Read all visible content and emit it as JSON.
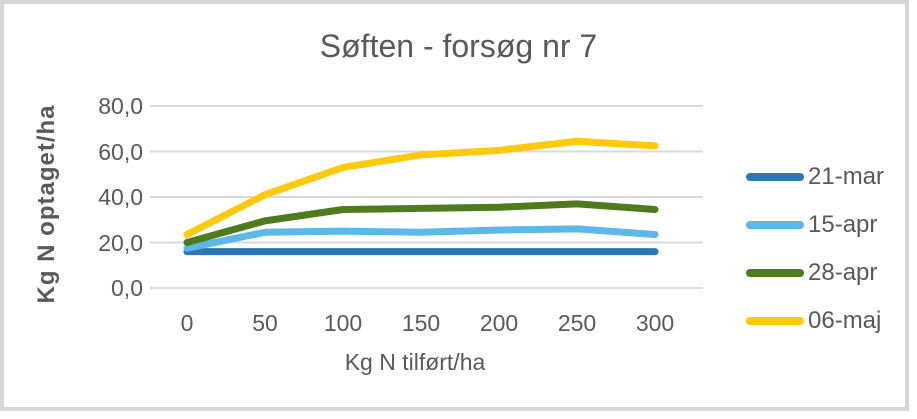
{
  "frame": {
    "border_color": "#d6d6d9",
    "background": "#ffffff"
  },
  "chart_data": {
    "type": "line",
    "title": "Søften - forsøg nr 7",
    "xlabel": "Kg N tilført/ha",
    "ylabel": "Kg N optaget/ha",
    "x": [
      0,
      50,
      100,
      150,
      200,
      250,
      300
    ],
    "x_tick_labels": [
      "0",
      "50",
      "100",
      "150",
      "200",
      "250",
      "300"
    ],
    "y_ticks": [
      0,
      20,
      40,
      60,
      80
    ],
    "y_tick_labels": [
      "0,0",
      "20,0",
      "40,0",
      "60,0",
      "80,0"
    ],
    "ylim": [
      0,
      80
    ],
    "grid": "horizontal",
    "legend_position": "right",
    "series": [
      {
        "name": "21-mar",
        "color": "#2e75b6",
        "values": [
          16,
          16,
          16,
          16,
          16,
          16,
          16
        ]
      },
      {
        "name": "15-apr",
        "color": "#5bb8e8",
        "values": [
          17.5,
          24.5,
          25,
          24.5,
          25.5,
          26,
          23.5
        ]
      },
      {
        "name": "28-apr",
        "color": "#4e7b1e",
        "values": [
          20,
          29.5,
          34.5,
          35,
          35.5,
          37,
          34.5
        ]
      },
      {
        "name": "06-maj",
        "color": "#ffc90e",
        "values": [
          23.5,
          41,
          53,
          58.5,
          60.5,
          64.5,
          62.5
        ]
      }
    ],
    "styles": {
      "text_color": "#595959",
      "grid_color": "#d9d9d9",
      "line_width": 7
    }
  }
}
